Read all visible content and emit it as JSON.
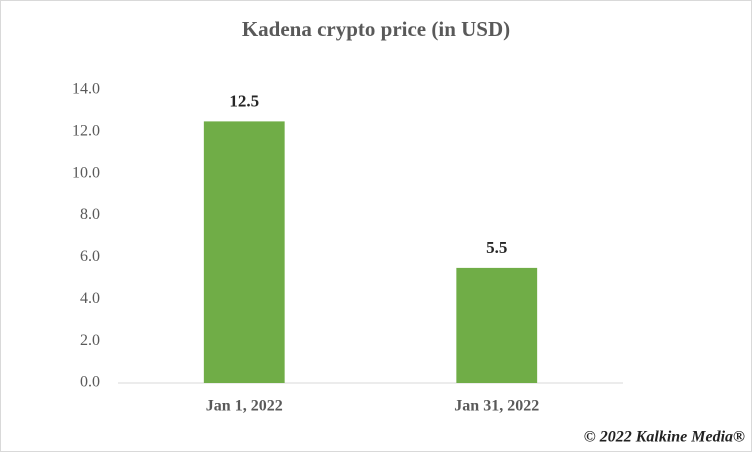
{
  "chart_data": {
    "type": "bar",
    "title": "Kadena crypto price (in USD)",
    "categories": [
      "Jan 1, 2022",
      "Jan 31, 2022"
    ],
    "values": [
      12.5,
      5.5
    ],
    "color": "#70ad47",
    "ylim": [
      0,
      14
    ],
    "yticks": [
      {
        "value": 0,
        "label": "0.0"
      },
      {
        "value": 2,
        "label": "2.0"
      },
      {
        "value": 4,
        "label": "4.0"
      },
      {
        "value": 6,
        "label": "6.0"
      },
      {
        "value": 8,
        "label": "8.0"
      },
      {
        "value": 10,
        "label": "10.0"
      },
      {
        "value": 12,
        "label": "12.0"
      },
      {
        "value": 14,
        "label": "14.0"
      }
    ],
    "grid": false,
    "watermark": "© 2022 Kalkine Media®"
  }
}
